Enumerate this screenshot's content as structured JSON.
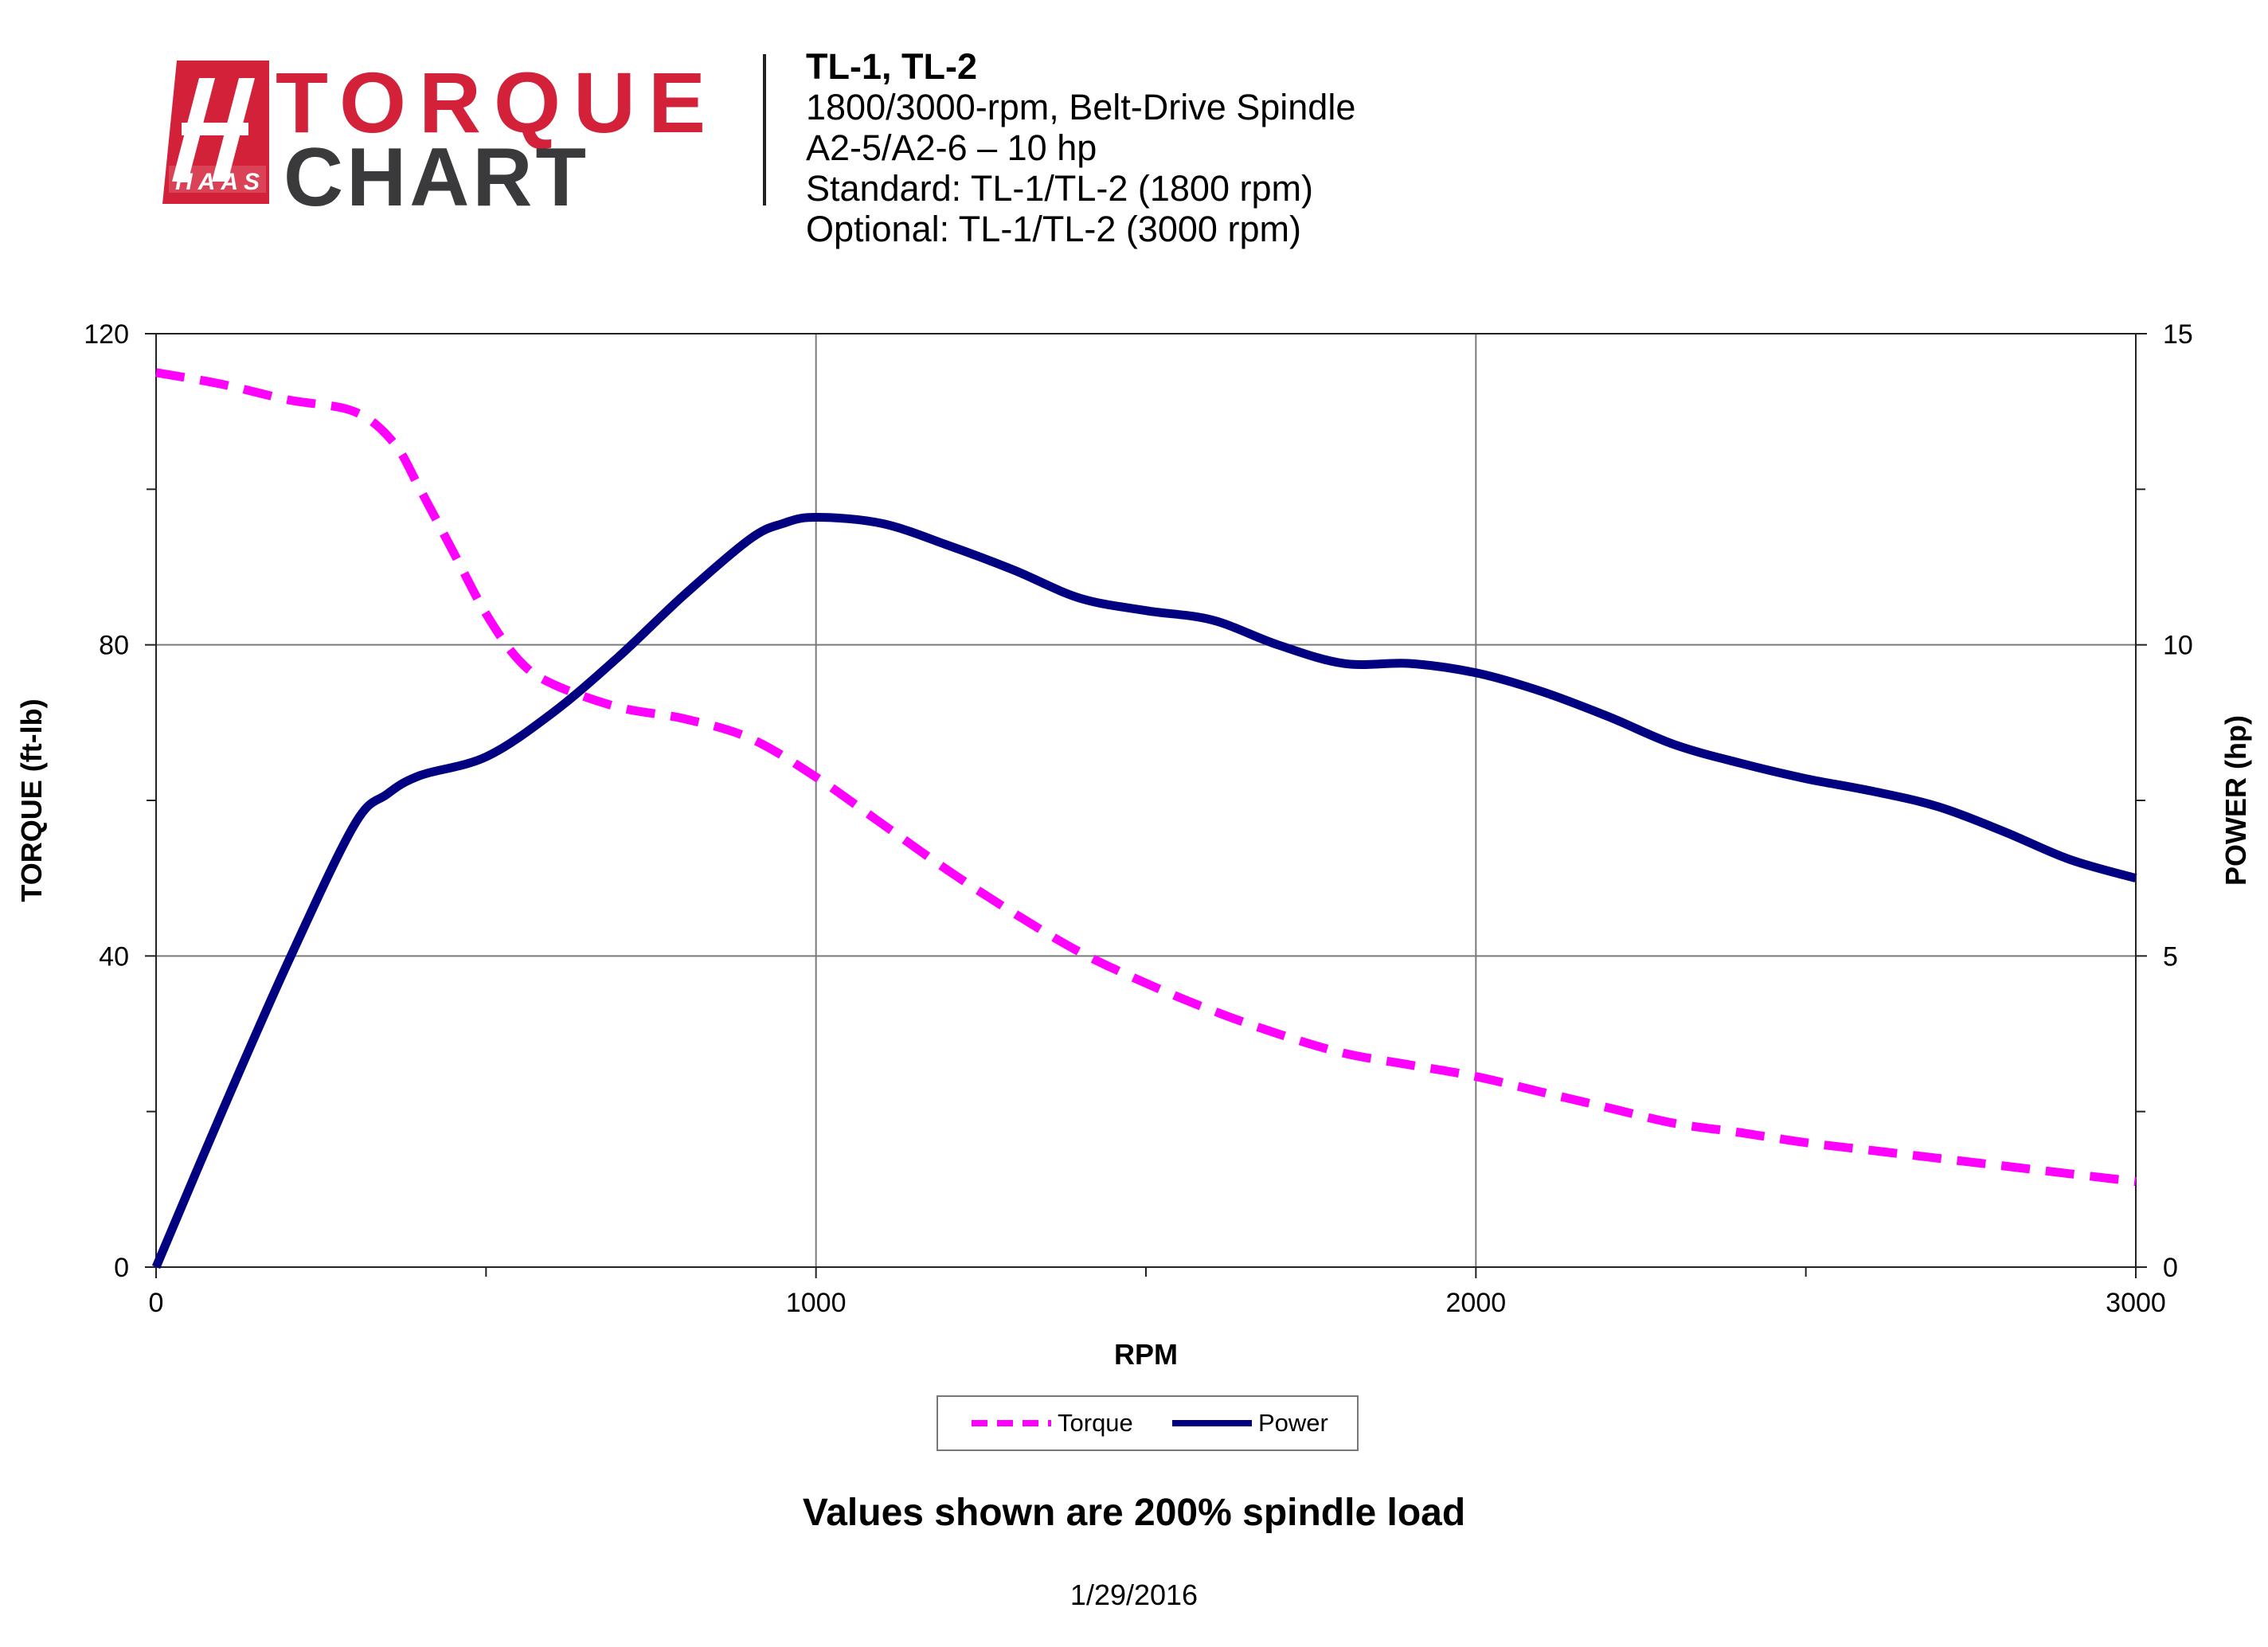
{
  "logo": {
    "top": "TORQUE",
    "bottom": "CHART",
    "brand": "HAAS"
  },
  "header": {
    "title": "TL-1, TL-2",
    "lines": [
      "1800/3000-rpm, Belt-Drive Spindle",
      "A2-5/A2-6 – 10 hp",
      "Standard: TL-1/TL-2 (1800 rpm)",
      "Optional: TL-1/TL-2 (3000 rpm)"
    ]
  },
  "colors": {
    "brand_red": "#d3213a",
    "logo_dark": "#3a3a3c",
    "torque": "#ff00ff",
    "power": "#000080",
    "grid": "#7a7a7a"
  },
  "chart_data": {
    "type": "line",
    "xlabel": "RPM",
    "ylabel": "TORQUE (ft-lb)",
    "y2label": "POWER (hp)",
    "xlim": [
      0,
      3000
    ],
    "ylim": [
      0,
      120
    ],
    "y2lim": [
      0,
      15
    ],
    "xticks": [
      0,
      1000,
      2000,
      3000
    ],
    "yticks": [
      0,
      40,
      80,
      120
    ],
    "y2ticks": [
      0,
      5,
      10,
      15
    ],
    "grid": true,
    "legend_position": "bottom-center",
    "series": [
      {
        "name": "Torque",
        "axis": "left",
        "style": "dashed",
        "points": [
          [
            0,
            115
          ],
          [
            100,
            113.5
          ],
          [
            200,
            111.5
          ],
          [
            300,
            110
          ],
          [
            360,
            106
          ],
          [
            400,
            100
          ],
          [
            450,
            92
          ],
          [
            500,
            84
          ],
          [
            550,
            78
          ],
          [
            600,
            75
          ],
          [
            700,
            72
          ],
          [
            800,
            70.5
          ],
          [
            900,
            68
          ],
          [
            1000,
            63
          ],
          [
            1100,
            57
          ],
          [
            1200,
            51
          ],
          [
            1300,
            45.5
          ],
          [
            1400,
            40.5
          ],
          [
            1500,
            36.5
          ],
          [
            1600,
            33
          ],
          [
            1700,
            30
          ],
          [
            1800,
            27.5
          ],
          [
            1900,
            26
          ],
          [
            2000,
            24.5
          ],
          [
            2100,
            22.5
          ],
          [
            2200,
            20.5
          ],
          [
            2300,
            18.5
          ],
          [
            2400,
            17.3
          ],
          [
            2500,
            16
          ],
          [
            2600,
            15
          ],
          [
            2700,
            14
          ],
          [
            2800,
            13
          ],
          [
            2900,
            12
          ],
          [
            3000,
            11
          ]
        ]
      },
      {
        "name": "Power",
        "axis": "right",
        "style": "solid",
        "points": [
          [
            0,
            0
          ],
          [
            100,
            2.5
          ],
          [
            200,
            4.9
          ],
          [
            300,
            7.1
          ],
          [
            350,
            7.6
          ],
          [
            400,
            7.9
          ],
          [
            500,
            8.2
          ],
          [
            600,
            8.9
          ],
          [
            700,
            9.8
          ],
          [
            800,
            10.8
          ],
          [
            900,
            11.7
          ],
          [
            950,
            11.95
          ],
          [
            1000,
            12.05
          ],
          [
            1100,
            11.95
          ],
          [
            1200,
            11.6
          ],
          [
            1300,
            11.2
          ],
          [
            1400,
            10.75
          ],
          [
            1500,
            10.55
          ],
          [
            1600,
            10.4
          ],
          [
            1700,
            10.0
          ],
          [
            1800,
            9.7
          ],
          [
            1900,
            9.7
          ],
          [
            2000,
            9.55
          ],
          [
            2100,
            9.25
          ],
          [
            2200,
            8.85
          ],
          [
            2300,
            8.4
          ],
          [
            2400,
            8.1
          ],
          [
            2500,
            7.85
          ],
          [
            2600,
            7.65
          ],
          [
            2700,
            7.4
          ],
          [
            2800,
            7.0
          ],
          [
            2900,
            6.55
          ],
          [
            3000,
            6.25
          ]
        ]
      }
    ]
  },
  "legend": {
    "torque_label": "Torque",
    "power_label": "Power"
  },
  "footnote": "Values shown are 200% spindle load",
  "date": "1/29/2016"
}
